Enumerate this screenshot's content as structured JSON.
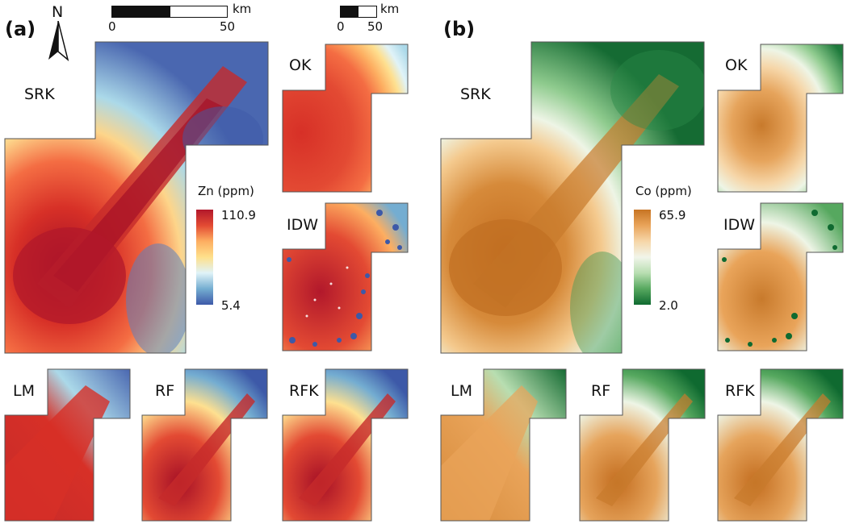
{
  "panels": [
    {
      "letter": "(a)",
      "legend": {
        "title": "Zn (ppm)",
        "max": "110.9",
        "min": "5.4",
        "ramp": [
          "#b2182b",
          "#e34a33",
          "#fdae61",
          "#fee08b",
          "#e0f3f8",
          "#74add1",
          "#3d59a8"
        ]
      },
      "methods": {
        "srk": "SRK",
        "ok": "OK",
        "idw": "IDW",
        "lm": "LM",
        "rf": "RF",
        "rfk": "RFK"
      }
    },
    {
      "letter": "(b)",
      "legend": {
        "title": "Co (ppm)",
        "max": "65.9",
        "min": "2.0",
        "ramp": [
          "#c77423",
          "#e9a45a",
          "#f6d6a8",
          "#f1f5ea",
          "#b8deb1",
          "#56a85f",
          "#0f6a30"
        ]
      },
      "methods": {
        "srk": "SRK",
        "ok": "OK",
        "idw": "IDW",
        "lm": "LM",
        "rf": "RF",
        "rfk": "RFK"
      }
    }
  ],
  "north_arrow": {
    "label": "N"
  },
  "scale_large": {
    "unit": "km",
    "start": "0",
    "end": "50"
  },
  "scale_small": {
    "unit": "km",
    "start": "0",
    "end": "50"
  }
}
